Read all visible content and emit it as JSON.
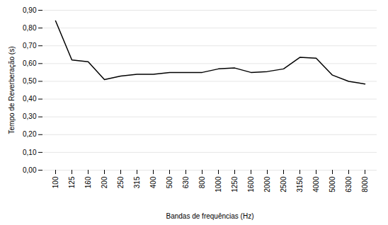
{
  "chart_data": {
    "type": "line",
    "categories": [
      "100",
      "125",
      "160",
      "200",
      "250",
      "315",
      "400",
      "500",
      "630",
      "800",
      "1000",
      "1250",
      "1600",
      "2000",
      "2500",
      "3150",
      "4000",
      "5000",
      "6300",
      "8000"
    ],
    "values": [
      0.84,
      0.62,
      0.61,
      0.51,
      0.53,
      0.54,
      0.54,
      0.55,
      0.55,
      0.55,
      0.57,
      0.575,
      0.55,
      0.555,
      0.57,
      0.635,
      0.63,
      0.535,
      0.5,
      0.485
    ],
    "color": "#000000",
    "xlabel": "Bandas de frequências (Hz)",
    "ylabel": "Tempo de Reverberação (s)",
    "ylim": [
      0.0,
      0.9
    ],
    "yticks": [
      {
        "value": 0.0,
        "label": "0,00"
      },
      {
        "value": 0.1,
        "label": "0,10"
      },
      {
        "value": 0.2,
        "label": "0,20"
      },
      {
        "value": 0.3,
        "label": "0,30"
      },
      {
        "value": 0.4,
        "label": "0,40"
      },
      {
        "value": 0.5,
        "label": "0,50"
      },
      {
        "value": 0.6,
        "label": "0,60"
      },
      {
        "value": 0.7,
        "label": "0,70"
      },
      {
        "value": 0.8,
        "label": "0,80"
      },
      {
        "value": 0.9,
        "label": "0,90"
      }
    ],
    "grid": true
  }
}
